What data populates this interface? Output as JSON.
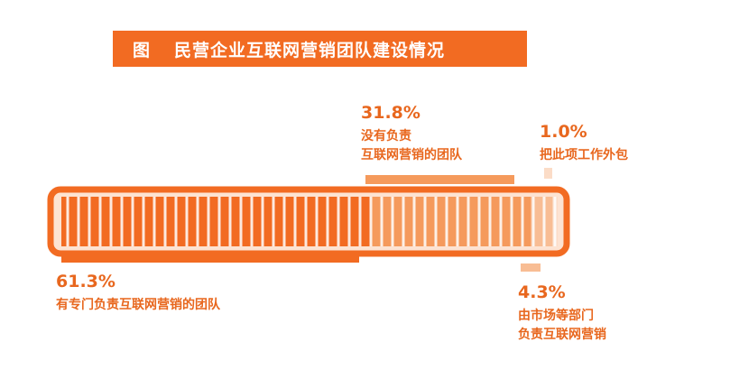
{
  "title": {
    "prefix": "图",
    "text": "民营企业互联网营销团队建设情况"
  },
  "chart_data": {
    "type": "bar",
    "orientation": "horizontal-stacked",
    "unit": "%",
    "series": [
      {
        "value": 61.3,
        "value_label": "61.3%",
        "label_lines": [
          "有专门负责互联网营销的团队"
        ],
        "color": "#f26b22",
        "label_side": "bottom"
      },
      {
        "value": 31.8,
        "value_label": "31.8%",
        "label_lines": [
          "没有负责",
          "互联网营销的团队"
        ],
        "color": "#f59a5c",
        "label_side": "top"
      },
      {
        "value": 4.3,
        "value_label": "4.3%",
        "label_lines": [
          "由市场等部门",
          "负责互联网营销"
        ],
        "color": "#f8bd94",
        "label_side": "bottom"
      },
      {
        "value": 1.0,
        "value_label": "1.0%",
        "label_lines": [
          "把此项工作外包"
        ],
        "color": "#fbdcc7",
        "label_side": "top"
      }
    ]
  }
}
